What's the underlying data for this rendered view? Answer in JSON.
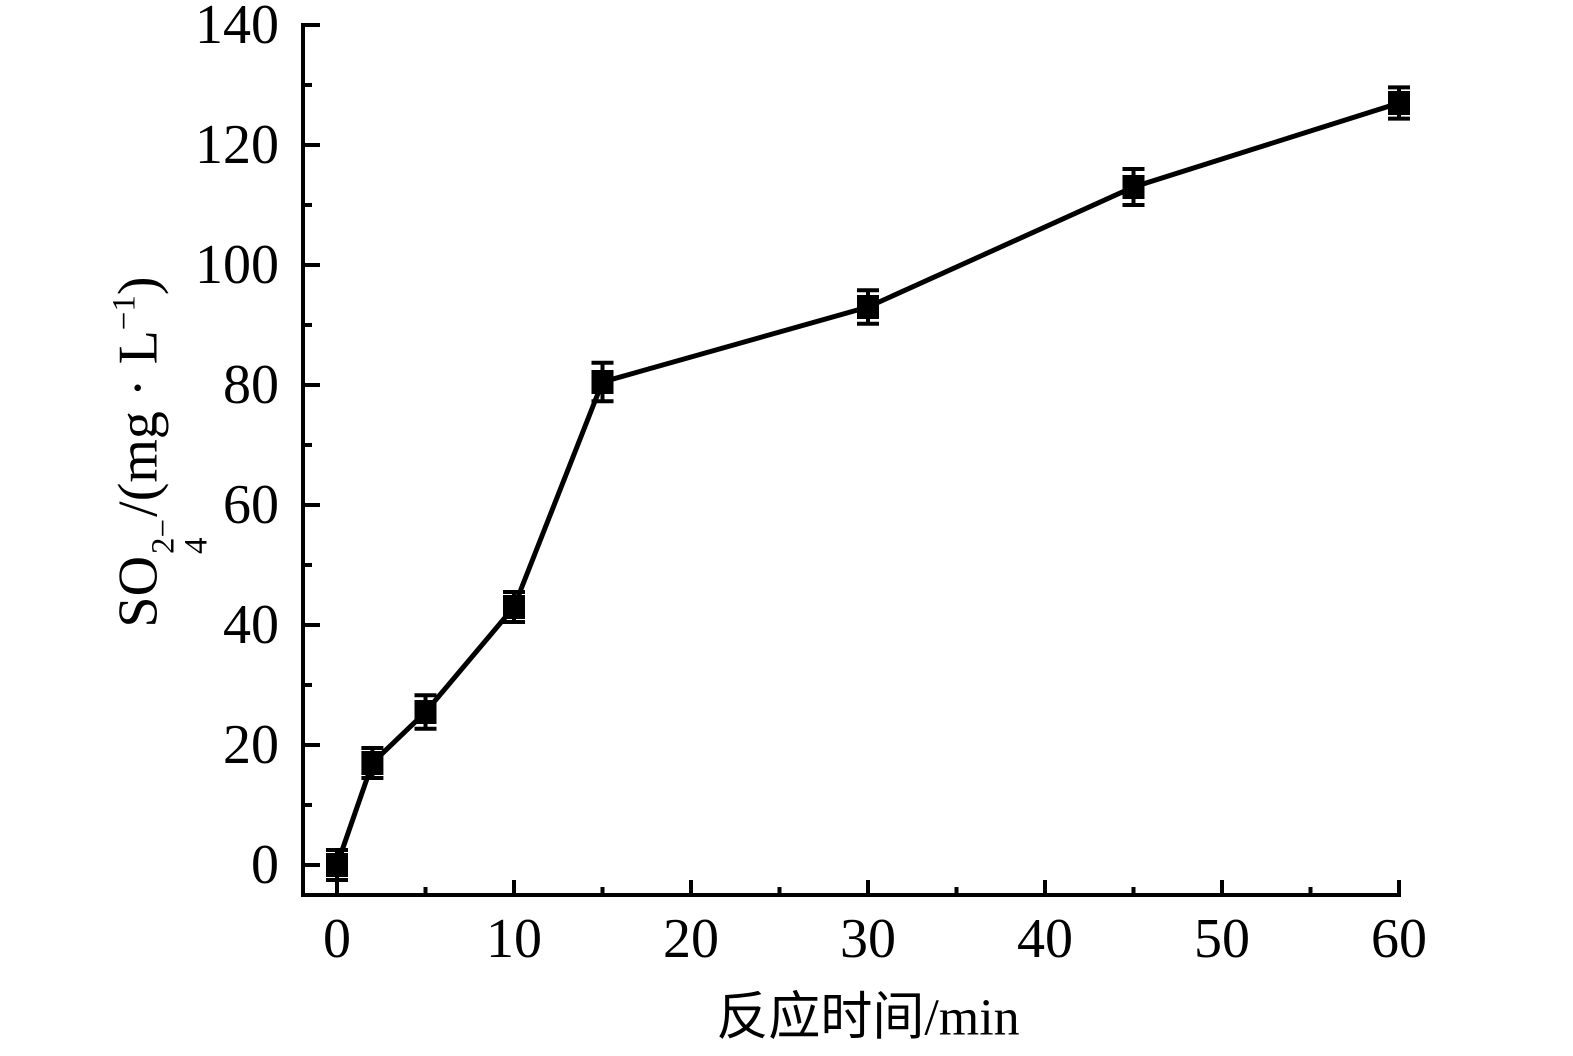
{
  "chart_data": {
    "type": "line",
    "title": "",
    "xlabel": "反应时间/min",
    "ylabel": "SO₄²⁻/(mg · L⁻¹)",
    "ylabel_parts": {
      "base": "SO",
      "superscript": "2−",
      "subscript": "4",
      "middle": "/(mg · L",
      "superscript2": "−1",
      "end": ")"
    },
    "x": [
      0,
      2,
      5,
      10,
      15,
      30,
      45,
      60
    ],
    "y": [
      0,
      17,
      25.5,
      43,
      80.5,
      93,
      113,
      127
    ],
    "y_error": [
      2.5,
      2.5,
      2.8,
      2.5,
      3.2,
      2.8,
      3.0,
      2.6
    ],
    "x_ticks": [
      0,
      10,
      20,
      30,
      40,
      50,
      60
    ],
    "x_minor_ticks": [
      5,
      15,
      25,
      35,
      45,
      55
    ],
    "y_ticks": [
      0,
      20,
      40,
      60,
      80,
      100,
      120,
      140
    ],
    "y_minor_ticks": [
      10,
      30,
      50,
      70,
      90,
      110,
      130
    ],
    "xlim": [
      0,
      60
    ],
    "ylim": [
      0,
      140
    ],
    "grid": false,
    "legend": "none",
    "marker": "square",
    "series_color": "#000000",
    "axis_color": "#000000",
    "background_color": "#ffffff"
  }
}
